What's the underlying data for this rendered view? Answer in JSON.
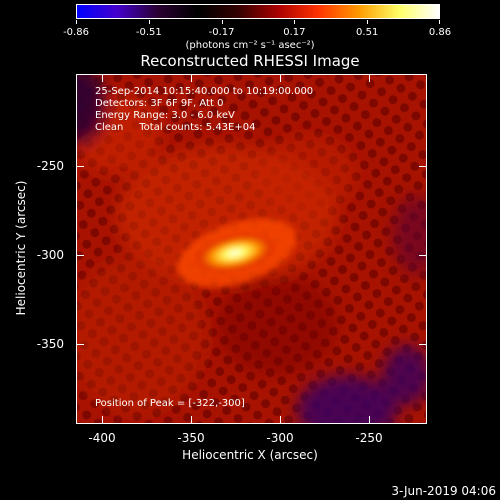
{
  "colorbar": {
    "tick_labels": [
      "-0.86",
      "-0.51",
      "-0.17",
      "0.17",
      "0.51",
      "0.86"
    ],
    "units_label": "(photons cm⁻² s⁻¹ asec⁻²)"
  },
  "plot": {
    "title": "Reconstructed RHESSI Image",
    "info_lines": [
      "25-Sep-2014 10:15:40.000 to 10:19:00.000",
      "Detectors: 3F 6F 9F, Att 0",
      "Energy Range: 3.0 - 6.0 keV",
      "Clean     Total counts: 5.43E+04"
    ],
    "peak_text": "Position of Peak = [-322,-300]",
    "xlabel": "Heliocentric X (arcsec)",
    "ylabel": "Heliocentric Y (arcsec)",
    "x_tick_labels": [
      "-400",
      "-350",
      "-300",
      "-250"
    ],
    "y_tick_labels": [
      "-250",
      "-300",
      "-350"
    ]
  },
  "footer": {
    "timestamp": "3-Jun-2019 04:06"
  },
  "colors": {
    "background": "#000000",
    "colormap": [
      "#0000ff",
      "#4400cc",
      "#2a0033",
      "#000000",
      "#330000",
      "#aa0000",
      "#ff3300",
      "#ff9900",
      "#ffff66",
      "#ffffff"
    ]
  },
  "icons": []
}
